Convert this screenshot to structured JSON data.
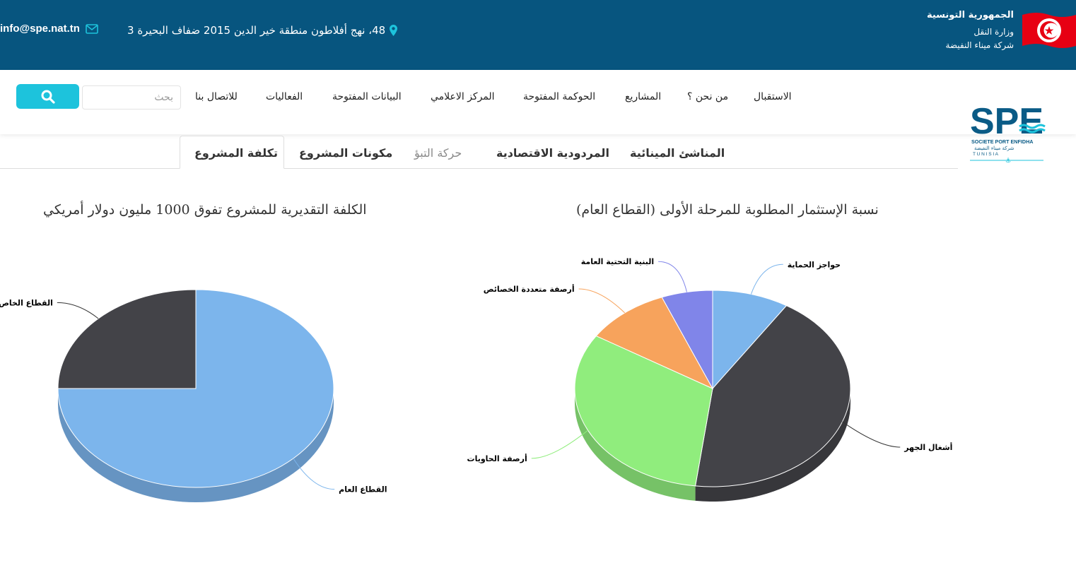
{
  "header": {
    "republic": "الجمهورية التونسية",
    "ministry": "وزارة النقل",
    "company": "شركة ميناء النفيضة",
    "address": "48، نهج أفلاطون منطقة خير الدين 2015 ضفاف البحيرة 3",
    "email": "info@spe.nat.tn",
    "icons": {
      "pin": "map-pin-icon",
      "envelope": "envelope-icon",
      "flag": "tunisia-flag-icon"
    }
  },
  "nav": {
    "items": [
      "الاستقبال",
      "من نحن ؟",
      "المشاريع",
      "الحوكمة المفتوحة",
      "المركز الاعلامي",
      "البيانات المفتوحة",
      "الفعاليات",
      "للاتصال بنا"
    ],
    "search_placeholder": "بحث",
    "search_icon": "search-icon"
  },
  "logo": {
    "text": "SPE",
    "line1": "SOCIETE PORT ENFIDHA",
    "line2": "شركة ميناء النفيضة",
    "line3": "T U N I S I A"
  },
  "tabs": [
    "المناشئ المينائية",
    "المردودية الاقتصادية",
    "حركة التبؤ",
    "مكونات المشروع",
    "تكلفة المشروع"
  ],
  "active_tab": "تكلفة المشروع",
  "colors": {
    "topbar": "#07557f",
    "accent": "#1dc3dc"
  },
  "chart_data": [
    {
      "type": "pie",
      "title": "الكلفة التقديرية للمشروع تفوق 1000 مليون دولار أمريكي",
      "slices": [
        {
          "label": "القطاع العام",
          "value": 75,
          "color": "#7cb5ec"
        },
        {
          "label": "القطاع الخاص",
          "value": 25,
          "color": "#434348"
        }
      ]
    },
    {
      "type": "pie",
      "title": "نسبة الإستثمار المطلوبة للمرحلة الأولى (القطاع العام)",
      "slices": [
        {
          "label": "حواجز الحماية",
          "value": 9,
          "color": "#7cb5ec"
        },
        {
          "label": "أشغال الجهر",
          "value": 43,
          "color": "#434348"
        },
        {
          "label": "أرصفة الحاويات",
          "value": 32,
          "color": "#90ed7d"
        },
        {
          "label": "أرصفة متعددة الخصائص",
          "value": 10,
          "color": "#f7a35c"
        },
        {
          "label": "البنية التحتية العامة",
          "value": 6,
          "color": "#8085e9"
        }
      ]
    }
  ]
}
